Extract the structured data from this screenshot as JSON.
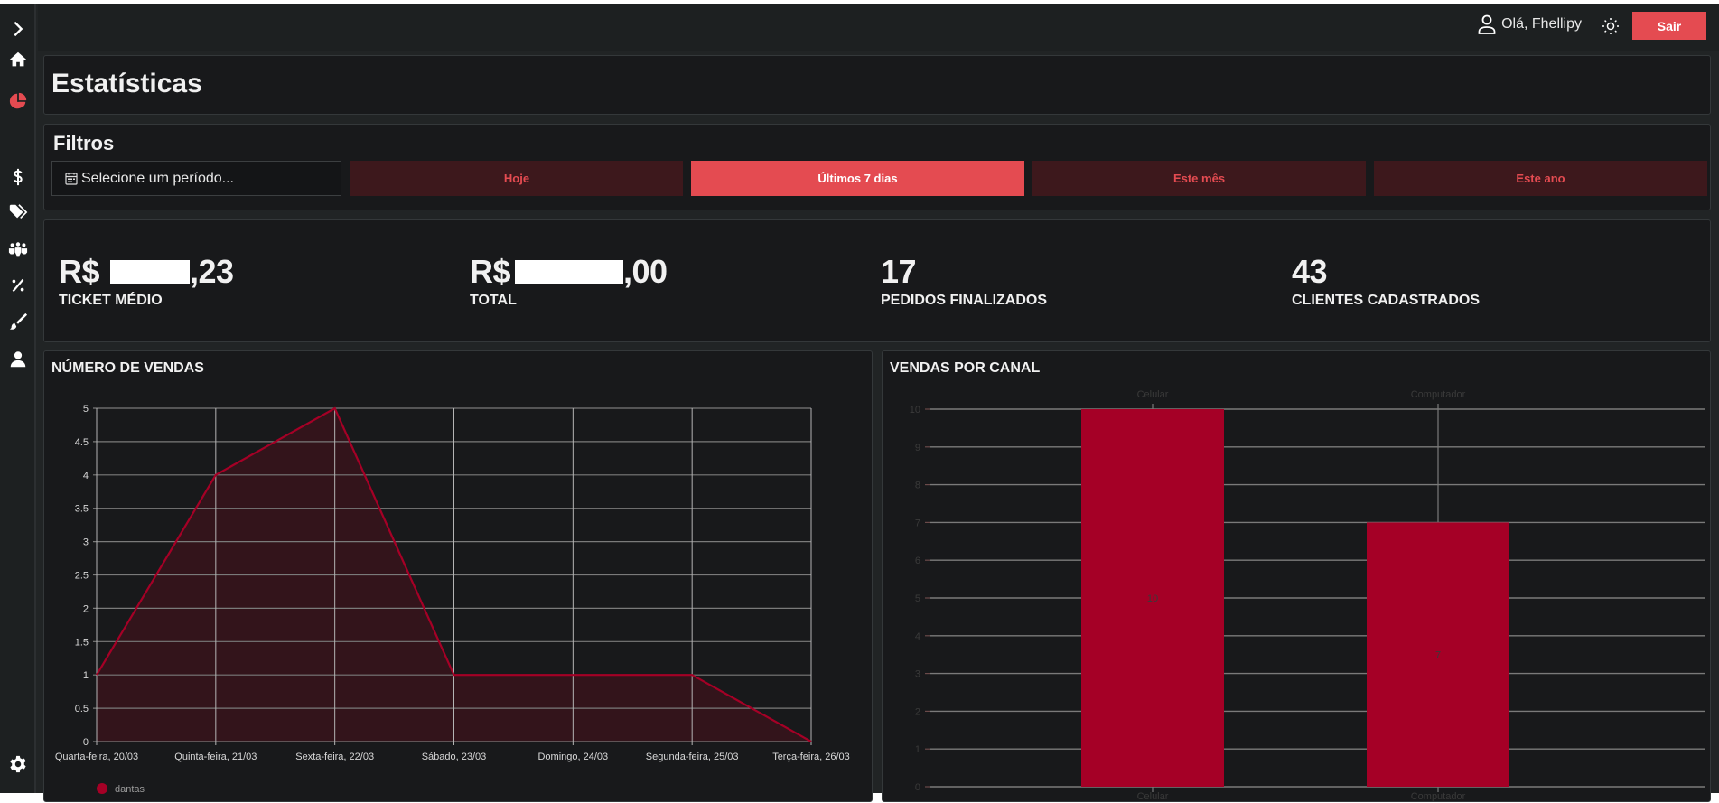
{
  "sidebar": {
    "items": [
      {
        "name": "expand",
        "icon": "chevron-right-icon"
      },
      {
        "name": "home",
        "icon": "home-icon"
      },
      {
        "name": "statistics",
        "icon": "pie-chart-icon",
        "active": true
      },
      {
        "name": "finance",
        "icon": "dollar-icon"
      },
      {
        "name": "products",
        "icon": "tags-icon"
      },
      {
        "name": "customers",
        "icon": "users-icon"
      },
      {
        "name": "discounts",
        "icon": "percent-icon"
      },
      {
        "name": "customization",
        "icon": "brush-icon"
      },
      {
        "name": "profile",
        "icon": "user-icon"
      },
      {
        "name": "settings",
        "icon": "gear-icon"
      }
    ],
    "active_color": "#e44b51"
  },
  "header": {
    "greeting": "Olá, Fhellipy",
    "logout_label": "Sair"
  },
  "page": {
    "title": "Estatísticas"
  },
  "filters": {
    "title": "Filtros",
    "period_placeholder": "Selecione um período...",
    "buttons": [
      {
        "label": "Hoje",
        "active": false
      },
      {
        "label": "Últimos 7 dias",
        "active": true
      },
      {
        "label": "Este mês",
        "active": false
      },
      {
        "label": "Este ano",
        "active": false
      }
    ]
  },
  "stats": [
    {
      "prefix": "R$",
      "suffix": ",23",
      "label": "TICKET MÉDIO",
      "redacted": true
    },
    {
      "prefix": "R$",
      "suffix": ",00",
      "label": "TOTAL",
      "redacted": true
    },
    {
      "value": "17",
      "label": "PEDIDOS FINALIZADOS"
    },
    {
      "value": "43",
      "label": "CLIENTES CADASTRADOS"
    }
  ],
  "charts": {
    "sales": {
      "title": "NÚMERO DE VENDAS"
    },
    "channels": {
      "title": "VENDAS POR CANAL"
    }
  },
  "colors": {
    "accent": "#e44b51",
    "series": "#a50026",
    "area": "#33141b",
    "card_bg": "#18191b",
    "page_bg": "#212425"
  },
  "chart_data": [
    {
      "type": "area",
      "title": "NÚMERO DE VENDAS",
      "x": [
        "Quarta-feira, 20/03",
        "Quinta-feira, 21/03",
        "Sexta-feira, 22/03",
        "Sábado, 23/03",
        "Domingo, 24/03",
        "Segunda-feira, 25/03",
        "Terça-feira, 26/03"
      ],
      "series": [
        {
          "name": "dantas",
          "values": [
            1,
            4,
            5,
            1,
            1,
            1,
            0
          ]
        }
      ],
      "yticks": [
        "0",
        "0.5",
        "1",
        "1.5",
        "2",
        "2.5",
        "3",
        "3.5",
        "4",
        "4.5",
        "5"
      ],
      "ylim": [
        0,
        5
      ],
      "grid": true,
      "legend_position": "bottom-left"
    },
    {
      "type": "bar",
      "title": "VENDAS POR CANAL",
      "categories": [
        "Celular",
        "Computador"
      ],
      "values": [
        10,
        7
      ],
      "yticks": [
        "0",
        "1",
        "2",
        "3",
        "4",
        "5",
        "6",
        "7",
        "8",
        "9",
        "10"
      ],
      "ylim": [
        0,
        10
      ],
      "grid": true
    }
  ]
}
